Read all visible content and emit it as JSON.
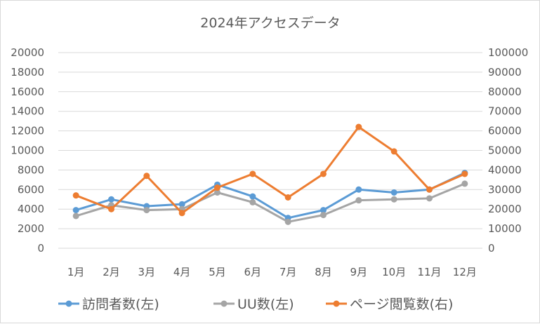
{
  "chart_data": {
    "type": "line",
    "title": "2024年アクセスデータ",
    "categories": [
      "1月",
      "2月",
      "3月",
      "4月",
      "5月",
      "6月",
      "7月",
      "8月",
      "9月",
      "10月",
      "11月",
      "12月"
    ],
    "y_left": {
      "ylim": [
        0,
        20000
      ],
      "ticks": [
        "0",
        "2000",
        "4000",
        "6000",
        "8000",
        "10000",
        "12000",
        "14000",
        "16000",
        "18000",
        "20000"
      ]
    },
    "y_right": {
      "ylim": [
        0,
        100000
      ],
      "ticks": [
        "0",
        "10000",
        "20000",
        "30000",
        "40000",
        "50000",
        "60000",
        "70000",
        "80000",
        "90000",
        "100000"
      ]
    },
    "grid": true,
    "legend_position": "bottom",
    "series": [
      {
        "name": "訪問者数(左)",
        "axis": "left",
        "color": "#5b9bd5",
        "values": [
          3900,
          5000,
          4300,
          4500,
          6500,
          5300,
          3100,
          3900,
          6000,
          5700,
          6000,
          7700
        ]
      },
      {
        "name": "UU数(左)",
        "axis": "left",
        "color": "#a5a5a5",
        "values": [
          3300,
          4400,
          3900,
          4000,
          5700,
          4700,
          2700,
          3400,
          4900,
          5000,
          5100,
          6600
        ]
      },
      {
        "name": "ページ閲覧数(右)",
        "axis": "right",
        "color": "#ed7d31",
        "values": [
          27000,
          20000,
          37000,
          18000,
          31000,
          38000,
          26000,
          38000,
          62000,
          49500,
          30000,
          38000
        ]
      }
    ]
  }
}
